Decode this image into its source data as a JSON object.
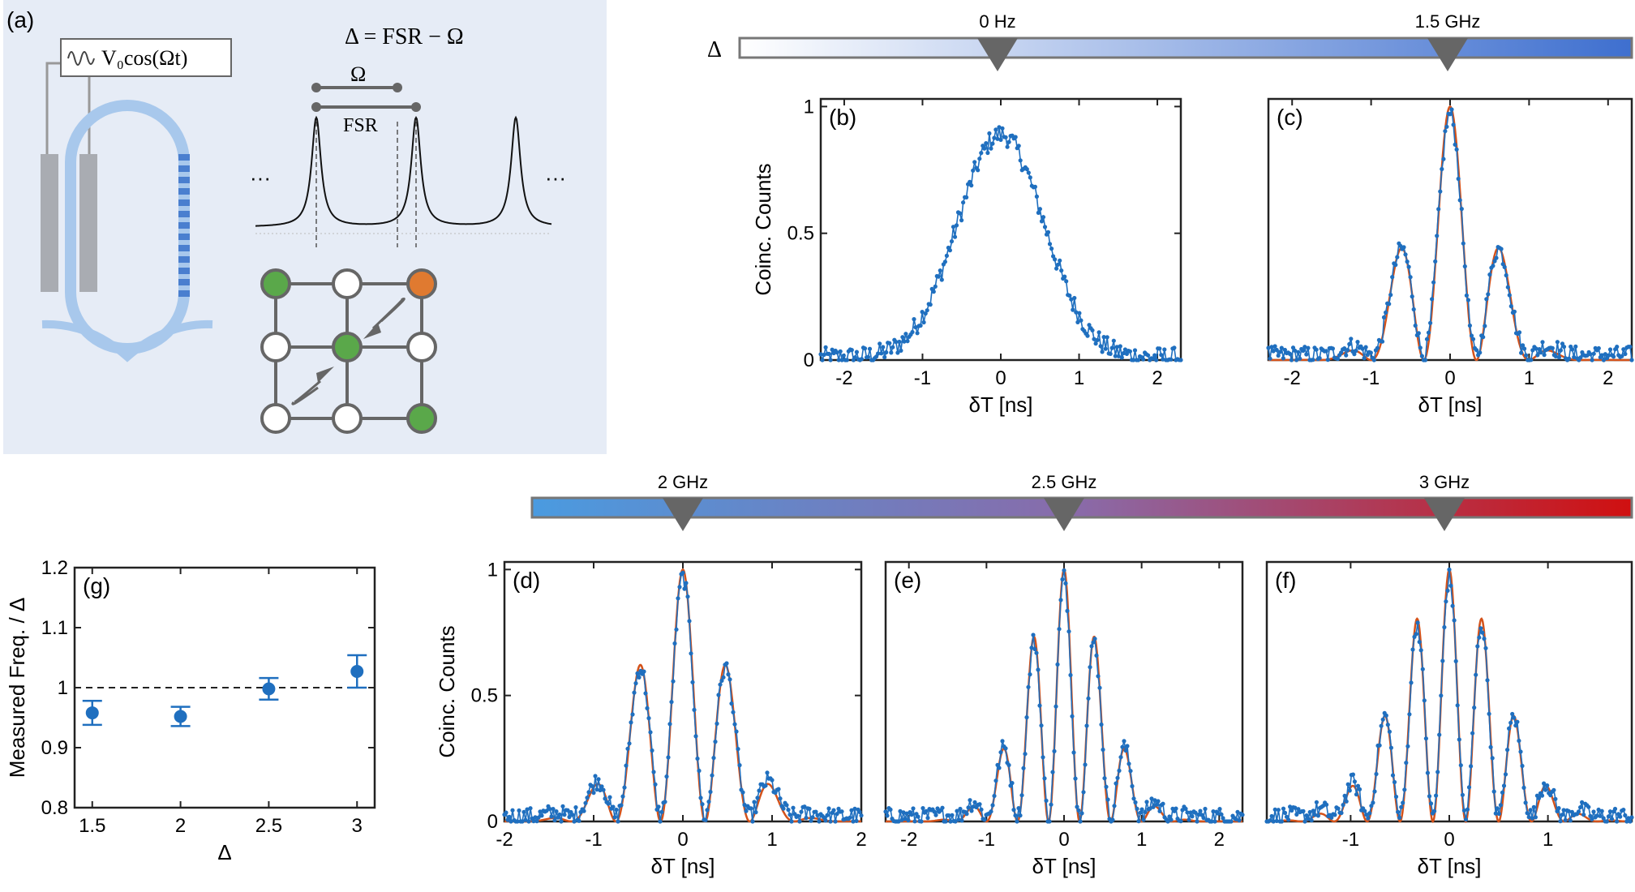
{
  "figure": {
    "panel_a": {
      "label": "(a)",
      "drive_label": "V₀cos(Ωt)",
      "equation": "Δ = FSR − Ω",
      "omega_label": "Ω",
      "fsr_label": "FSR",
      "ellipsis_left": "···",
      "ellipsis_right": "···"
    },
    "colorbar_top": {
      "symbol": "Δ",
      "markers": [
        "0 Hz",
        "1.5 GHz"
      ],
      "gradient": [
        "#ffffff",
        "#3e6fcf"
      ]
    },
    "colorbar_bottom": {
      "markers": [
        "2 GHz",
        "2.5 GHz",
        "3 GHz"
      ],
      "gradient": [
        "#4a9be0",
        "#8a6aa8",
        "#d01010"
      ]
    },
    "colors": {
      "data": "#1f6fbf",
      "fit": "#d4521a",
      "marker_triangle": "#666666"
    }
  },
  "chart_data": [
    {
      "id": "b",
      "label": "(b)",
      "type": "line",
      "xlabel": "δT [ns]",
      "ylabel": "Coinc. Counts",
      "xlim": [
        -2.3,
        2.3
      ],
      "ylim": [
        0,
        1.03
      ],
      "xticks": [
        "-2",
        "-1",
        "0",
        "1",
        "2"
      ],
      "yticks": [
        "0",
        "0.5",
        "1"
      ],
      "series": [
        {
          "values_model": {
            "kind": "gauss",
            "sigma": 0.55,
            "amp": 0.88
          }
        }
      ]
    },
    {
      "id": "c",
      "label": "(c)",
      "type": "line",
      "xlabel": "δT [ns]",
      "ylabel": "",
      "xlim": [
        -2.3,
        2.3
      ],
      "ylim": [
        0,
        1.03
      ],
      "xticks": [
        "-2",
        "-1",
        "0",
        "1",
        "2"
      ],
      "yticks": [],
      "freq_ghz": 1.5
    },
    {
      "id": "d",
      "label": "(d)",
      "type": "line",
      "xlabel": "δT [ns]",
      "ylabel": "Coinc. Counts",
      "xlim": [
        -2.0,
        2.0
      ],
      "ylim": [
        0,
        1.03
      ],
      "xticks": [
        "-2",
        "-1",
        "0",
        "1",
        "2"
      ],
      "yticks": [
        "0",
        "0.5",
        "1"
      ],
      "freq_ghz": 2.0
    },
    {
      "id": "e",
      "label": "(e)",
      "type": "line",
      "xlabel": "δT [ns]",
      "ylabel": "",
      "xlim": [
        -2.3,
        2.3
      ],
      "ylim": [
        0,
        1.03
      ],
      "xticks": [
        "-2",
        "-1",
        "0",
        "1",
        "2"
      ],
      "yticks": [],
      "freq_ghz": 2.5
    },
    {
      "id": "f",
      "label": "(f)",
      "type": "line",
      "xlabel": "δT [ns]",
      "ylabel": "",
      "xlim": [
        -1.85,
        1.85
      ],
      "ylim": [
        0,
        1.03
      ],
      "xticks": [
        "-1",
        "0",
        "1"
      ],
      "yticks": [],
      "freq_ghz": 3.0
    },
    {
      "id": "g",
      "label": "(g)",
      "type": "scatter",
      "xlabel": "Δ",
      "ylabel": "Measured Freq. / Δ",
      "xlim": [
        1.4,
        3.1
      ],
      "ylim": [
        0.8,
        1.2
      ],
      "xticks": [
        "1.5",
        "2",
        "2.5",
        "3"
      ],
      "yticks": [
        "0.8",
        "0.9",
        "1",
        "1.1",
        "1.2"
      ],
      "x": [
        1.5,
        2.0,
        2.5,
        3.0
      ],
      "y": [
        0.958,
        0.952,
        0.998,
        1.027
      ],
      "err": [
        0.02,
        0.016,
        0.018,
        0.027
      ],
      "reference_line": 1.0
    }
  ]
}
